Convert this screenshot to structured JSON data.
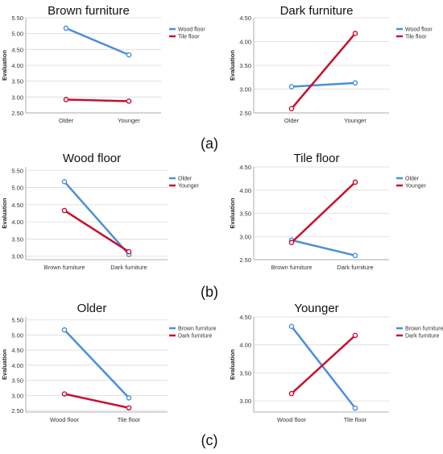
{
  "colors": {
    "blue": "#4a90d9",
    "red": "#c8102e",
    "grid": "#d9d9d9",
    "axis": "#999999"
  },
  "captions": [
    "(a)",
    "(b)",
    "(c)"
  ],
  "chart_data": [
    {
      "type": "line",
      "title": "Brown furniture",
      "ylabel": "Evaluation",
      "categories": [
        "Older",
        "Younger"
      ],
      "ylim": [
        2.5,
        5.5
      ],
      "yticks": [
        "2.50",
        "3.00",
        "3.50",
        "4.00",
        "4.50",
        "5.00",
        "5.50"
      ],
      "legend": "top-right",
      "series": [
        {
          "name": "Wood floor",
          "values": [
            5.17,
            4.33
          ],
          "color": "blue"
        },
        {
          "name": "Tile floor",
          "values": [
            2.92,
            2.87
          ],
          "color": "red"
        }
      ]
    },
    {
      "type": "line",
      "title": "Dark furniture",
      "ylabel": "Evaluation",
      "categories": [
        "Older",
        "Younger"
      ],
      "ylim": [
        2.5,
        4.5
      ],
      "yticks": [
        "2.50",
        "3.00",
        "3.50",
        "4.00",
        "4.50"
      ],
      "legend": "top-right",
      "series": [
        {
          "name": "Wood floor",
          "values": [
            3.05,
            3.13
          ],
          "color": "blue"
        },
        {
          "name": "Tile floor",
          "values": [
            2.59,
            4.17
          ],
          "color": "red"
        }
      ]
    },
    {
      "type": "line",
      "title": "Wood floor",
      "ylabel": "Evaluation",
      "categories": [
        "Brown furniture",
        "Dark furniture"
      ],
      "ylim": [
        2.9,
        5.6
      ],
      "yticks": [
        "3.00",
        "3.50",
        "4.00",
        "4.50",
        "5.00",
        "5.50"
      ],
      "legend": "top-right",
      "series": [
        {
          "name": "Older",
          "values": [
            5.17,
            3.05
          ],
          "color": "blue"
        },
        {
          "name": "Younger",
          "values": [
            4.33,
            3.13
          ],
          "color": "red"
        }
      ]
    },
    {
      "type": "line",
      "title": "Tile floor",
      "ylabel": "Evaluation",
      "categories": [
        "Brown furniture",
        "Dark furniture"
      ],
      "ylim": [
        2.5,
        4.5
      ],
      "yticks": [
        "2.50",
        "3.00",
        "3.50",
        "4.00",
        "4.50"
      ],
      "legend": "top-right",
      "series": [
        {
          "name": "Older",
          "values": [
            2.92,
            2.59
          ],
          "color": "blue"
        },
        {
          "name": "Younger",
          "values": [
            2.87,
            4.17
          ],
          "color": "red"
        }
      ]
    },
    {
      "type": "line",
      "title": "Older",
      "ylabel": "Evaluation",
      "categories": [
        "Wood floor",
        "Tile floor"
      ],
      "ylim": [
        2.45,
        5.6
      ],
      "yticks": [
        "2.50",
        "3.00",
        "3.50",
        "4.00",
        "4.50",
        "5.00",
        "5.50"
      ],
      "legend": "top-right",
      "series": [
        {
          "name": "Brown furniture",
          "values": [
            5.17,
            2.92
          ],
          "color": "blue"
        },
        {
          "name": "Dark furniture",
          "values": [
            3.05,
            2.59
          ],
          "color": "red"
        }
      ]
    },
    {
      "type": "line",
      "title": "Younger",
      "ylabel": "Evaluation",
      "categories": [
        "Wood floor",
        "Tile floor"
      ],
      "ylim": [
        2.8,
        4.5
      ],
      "yticks": [
        "3.00",
        "3.50",
        "4.00",
        "4.50"
      ],
      "legend": "top-right",
      "series": [
        {
          "name": "Brown furniture",
          "values": [
            4.33,
            2.87
          ],
          "color": "blue"
        },
        {
          "name": "Dark furniture",
          "values": [
            3.13,
            4.17
          ],
          "color": "red"
        }
      ]
    }
  ]
}
